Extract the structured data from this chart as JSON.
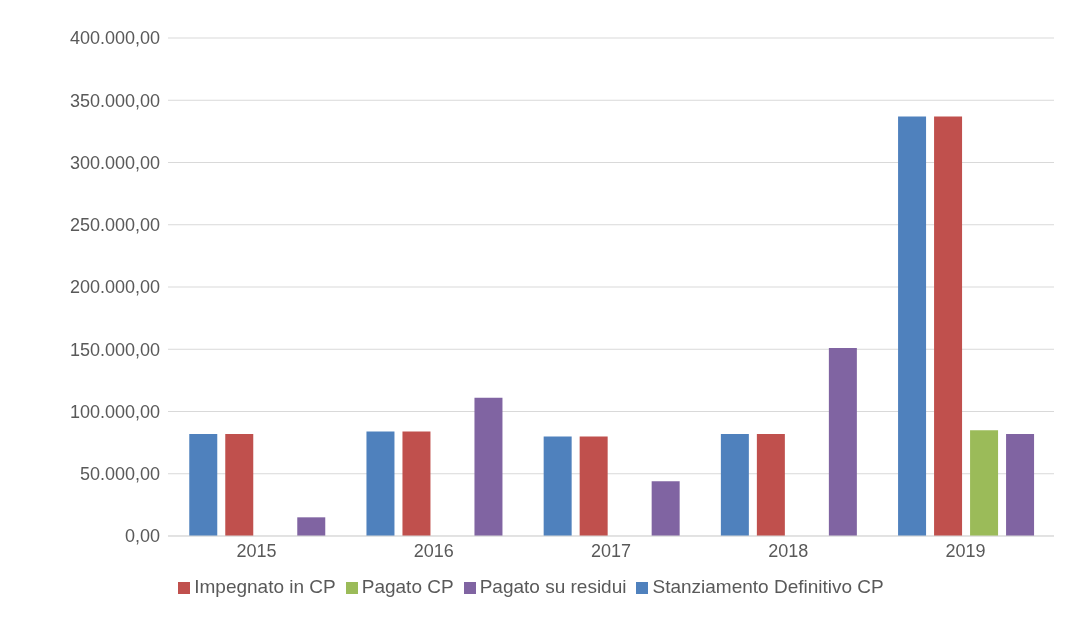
{
  "chart_data": {
    "type": "bar",
    "categories": [
      "2015",
      "2016",
      "2017",
      "2018",
      "2019"
    ],
    "series": [
      {
        "name": "Stanziamento Definitivo CP",
        "color": "#4f81bd",
        "values": [
          82000,
          84000,
          80000,
          82000,
          337000
        ]
      },
      {
        "name": "Impegnato in CP",
        "color": "#c0504d",
        "values": [
          82000,
          84000,
          80000,
          82000,
          337000
        ]
      },
      {
        "name": "Pagato CP",
        "color": "#9bbb59",
        "values": [
          null,
          null,
          null,
          null,
          85000
        ]
      },
      {
        "name": "Pagato su residui",
        "color": "#8064a2",
        "values": [
          15000,
          111000,
          44000,
          151000,
          82000
        ]
      }
    ],
    "ylim": [
      0,
      400000
    ],
    "yticks": [
      {
        "value": 0,
        "label": "0,00"
      },
      {
        "value": 50000,
        "label": "50.000,00"
      },
      {
        "value": 100000,
        "label": "100.000,00"
      },
      {
        "value": 150000,
        "label": "150.000,00"
      },
      {
        "value": 200000,
        "label": "200.000,00"
      },
      {
        "value": 250000,
        "label": "250.000,00"
      },
      {
        "value": 300000,
        "label": "300.000,00"
      },
      {
        "value": 350000,
        "label": "350.000,00"
      },
      {
        "value": 400000,
        "label": "400.000,00"
      }
    ],
    "grid": "y",
    "legend": "bottom"
  }
}
